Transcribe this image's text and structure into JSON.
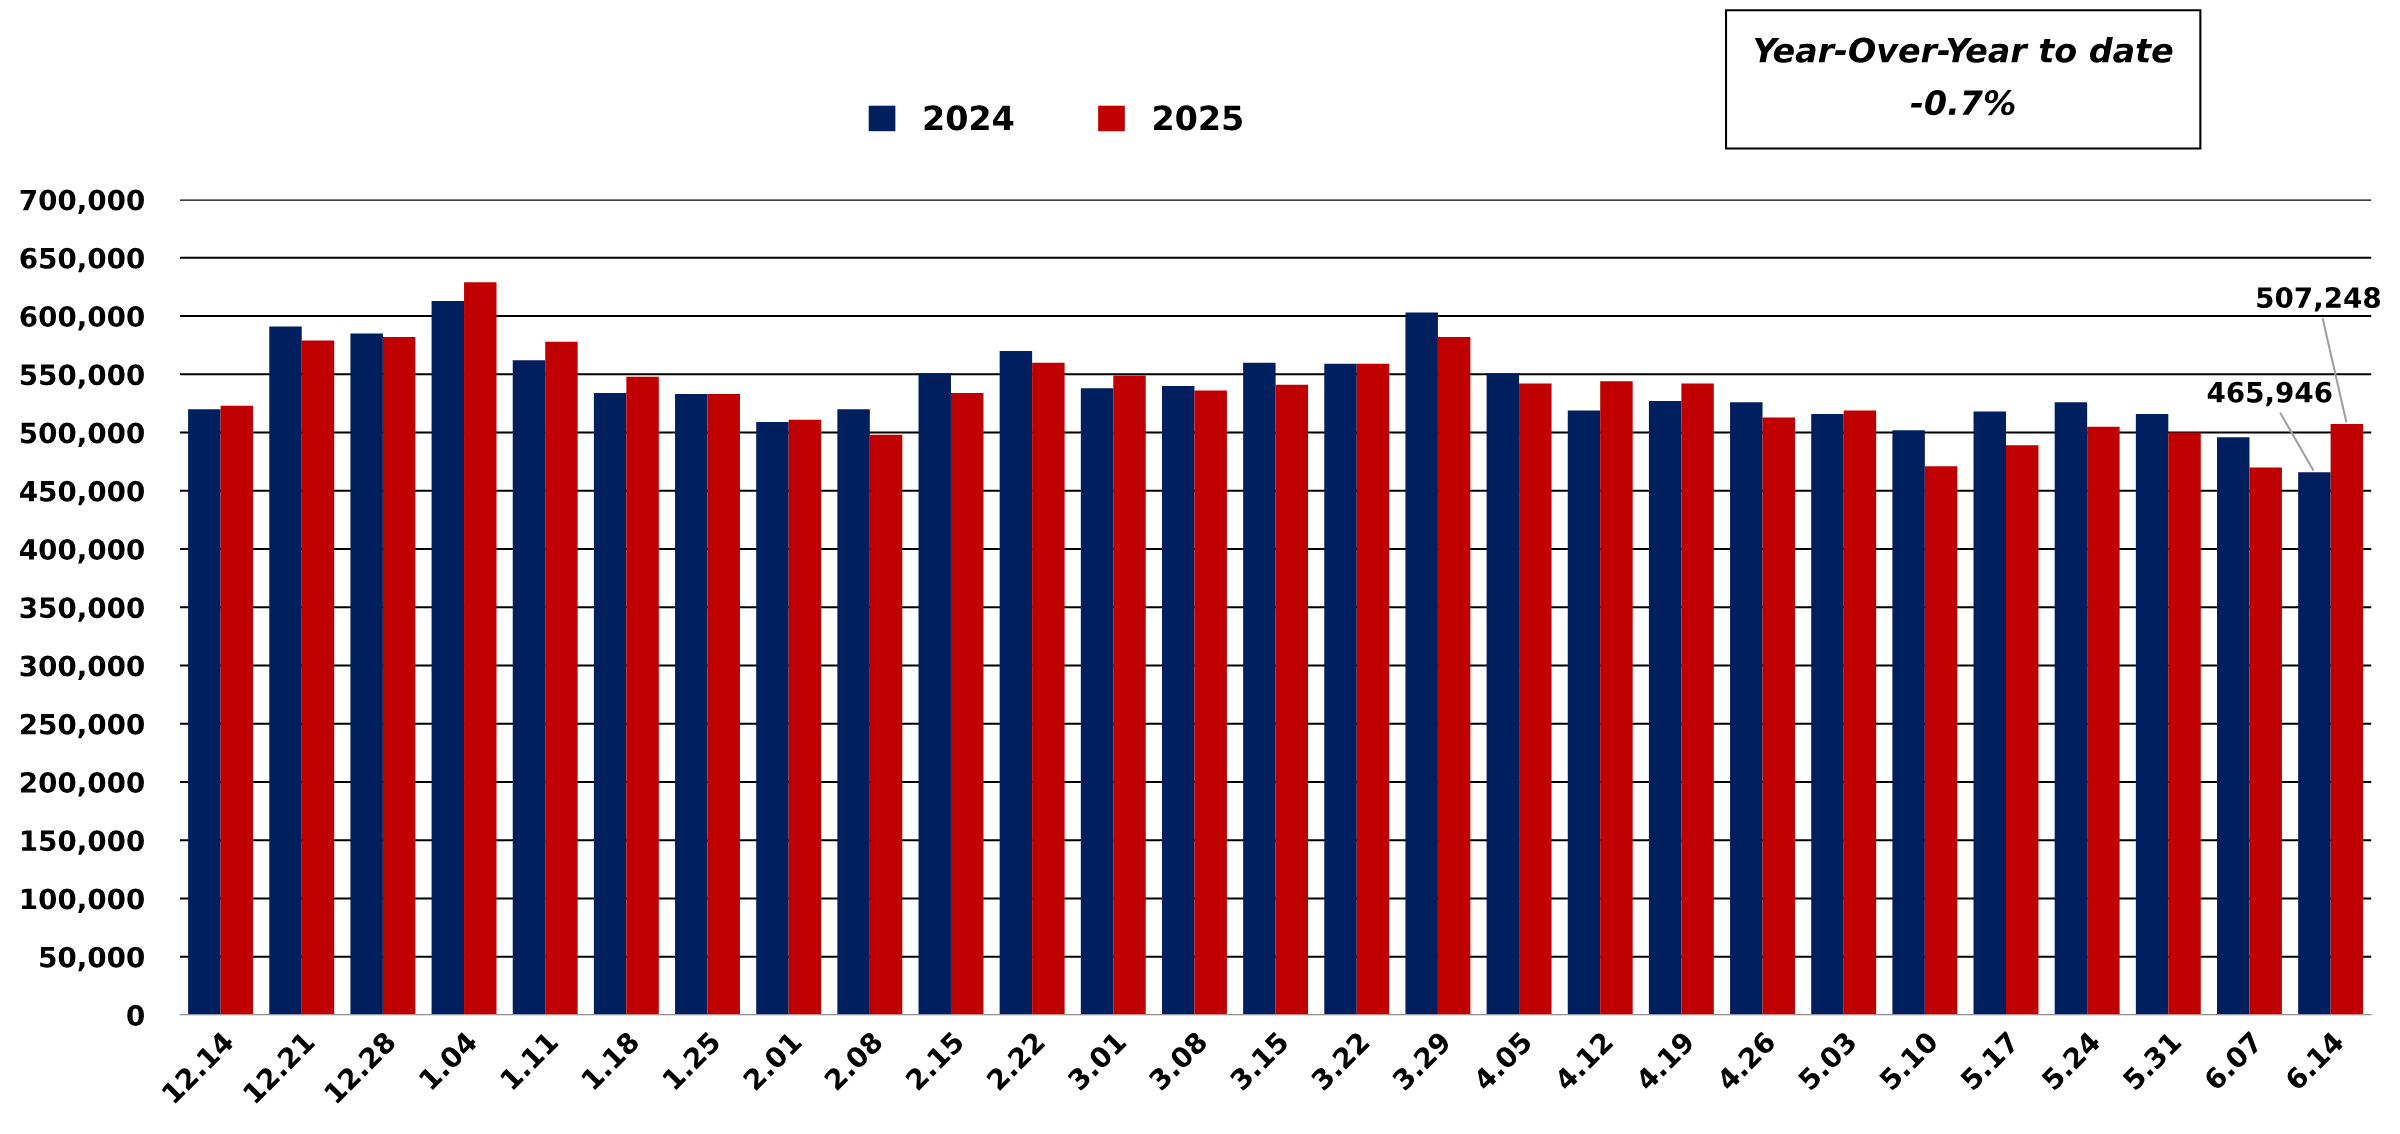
{
  "chart_data": {
    "type": "bar",
    "categories": [
      "12.14",
      "12.21",
      "12.28",
      "1.04",
      "1.11",
      "1.18",
      "1.25",
      "2.01",
      "2.08",
      "2.15",
      "2.22",
      "3.01",
      "3.08",
      "3.15",
      "3.22",
      "3.29",
      "4.05",
      "4.12",
      "4.19",
      "4.26",
      "5.03",
      "5.10",
      "5.17",
      "5.24",
      "5.31",
      "6.07",
      "6.14"
    ],
    "series": [
      {
        "name": "2024",
        "color": "#001f5f",
        "values": [
          520000,
          591000,
          585000,
          613000,
          562000,
          534000,
          533000,
          509000,
          520000,
          551000,
          570000,
          538000,
          540000,
          560000,
          559000,
          603000,
          551000,
          519000,
          527000,
          526000,
          516000,
          502000,
          518000,
          526000,
          516000,
          496000,
          465946
        ],
        "value_labels": [
          null,
          null,
          null,
          null,
          null,
          null,
          null,
          null,
          null,
          null,
          null,
          null,
          null,
          null,
          null,
          null,
          null,
          null,
          null,
          null,
          null,
          null,
          null,
          null,
          null,
          null,
          "465,946"
        ]
      },
      {
        "name": "2025",
        "color": "#c00000",
        "values": [
          523000,
          579000,
          582000,
          629000,
          578000,
          548000,
          533000,
          511000,
          498000,
          534000,
          560000,
          549000,
          536000,
          541000,
          559000,
          582000,
          542000,
          544000,
          542000,
          513000,
          519000,
          471000,
          489000,
          505000,
          500000,
          470000,
          507248
        ],
        "value_labels": [
          null,
          null,
          null,
          null,
          null,
          null,
          null,
          null,
          null,
          null,
          null,
          null,
          null,
          null,
          null,
          null,
          null,
          null,
          null,
          null,
          null,
          null,
          null,
          null,
          null,
          null,
          "507,248"
        ]
      }
    ],
    "ylim": [
      0,
      700000
    ],
    "yticks": [
      {
        "value": 0,
        "label": "0"
      },
      {
        "value": 50000,
        "label": "50,000"
      },
      {
        "value": 100000,
        "label": "100,000"
      },
      {
        "value": 150000,
        "label": "150,000"
      },
      {
        "value": 200000,
        "label": "200,000"
      },
      {
        "value": 250000,
        "label": "250,000"
      },
      {
        "value": 300000,
        "label": "300,000"
      },
      {
        "value": 350000,
        "label": "350,000"
      },
      {
        "value": 400000,
        "label": "400,000"
      },
      {
        "value": 450000,
        "label": "450,000"
      },
      {
        "value": 500000,
        "label": "500,000"
      },
      {
        "value": 550000,
        "label": "550,000"
      },
      {
        "value": 600000,
        "label": "600,000"
      },
      {
        "value": 650000,
        "label": "650,000"
      },
      {
        "value": 700000,
        "label": "700,000"
      }
    ],
    "grid": "y",
    "legend": "top",
    "annotations": [
      "Year-Over-Year to date\n-0.7%"
    ]
  }
}
